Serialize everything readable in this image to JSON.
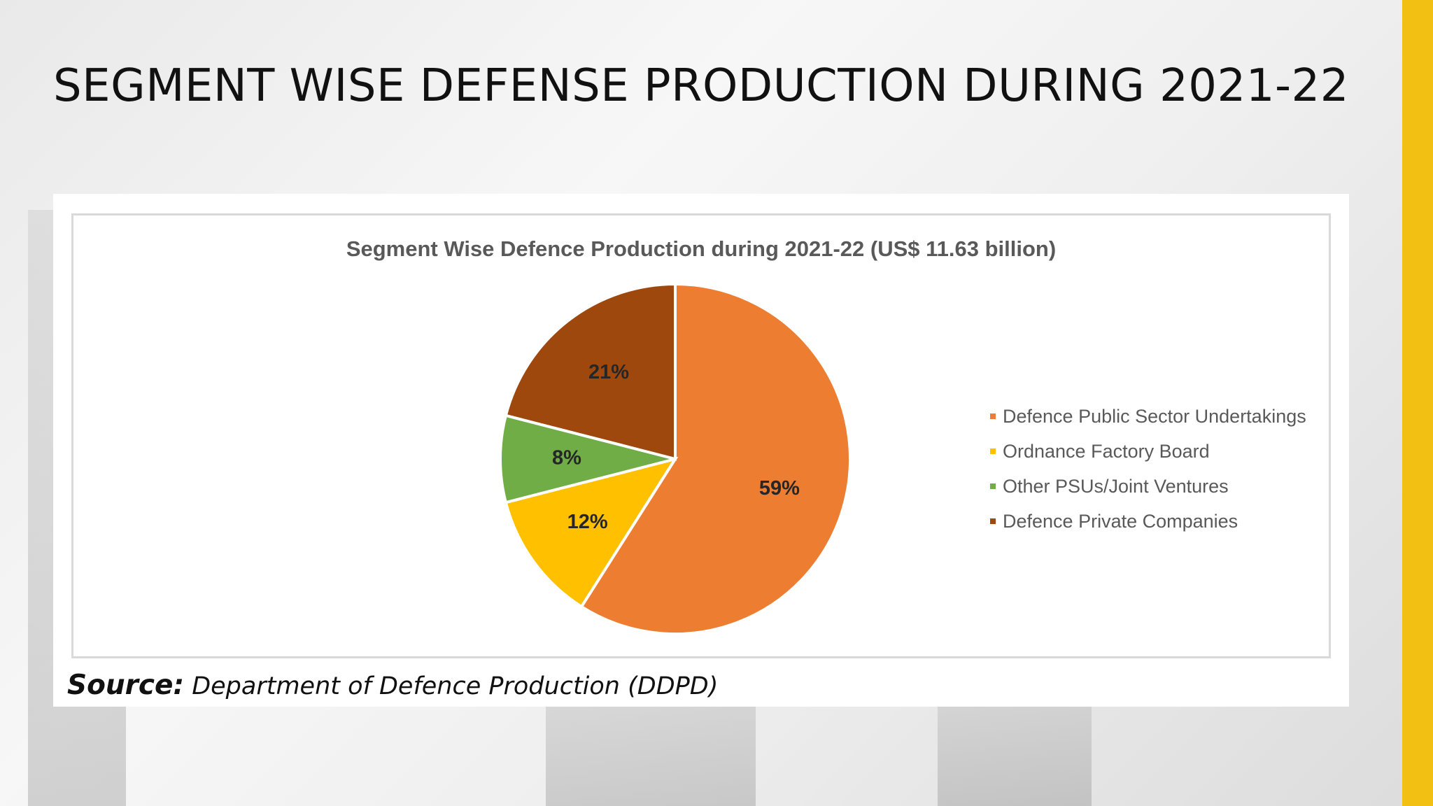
{
  "slide": {
    "title": "SEGMENT WISE DEFENSE PRODUCTION DURING 2021-22",
    "accent_color": "#f2c012"
  },
  "chart_data": {
    "type": "pie",
    "title": "Segment Wise Defence Production during 2021-22 (US$ 11.63 billion)",
    "categories": [
      "Defence Public Sector Undertakings",
      "Ordnance Factory Board",
      "Other PSUs/Joint Ventures",
      "Defence Private Companies"
    ],
    "values": [
      59,
      12,
      8,
      21
    ],
    "data_labels": [
      "59%",
      "12%",
      "8%",
      "21%"
    ],
    "colors": [
      "#ed7d31",
      "#ffc000",
      "#70ad47",
      "#9e480e"
    ],
    "legend_position": "right"
  },
  "source": {
    "label": "Source:",
    "text": "Department of Defence Production (DDPD)"
  }
}
